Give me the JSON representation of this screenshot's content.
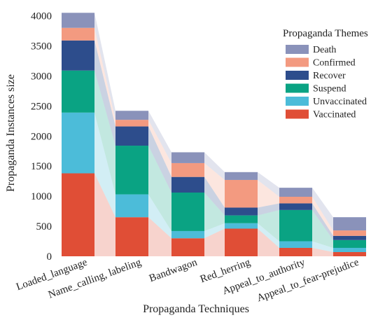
{
  "chart_data": {
    "type": "bar",
    "stacked": true,
    "connectors": true,
    "xlabel": "Propaganda Techniques",
    "ylabel": "Propaganda Instances size",
    "categories": [
      "Loaded_language",
      "Name_calling, labeling",
      "Bandwagon",
      "Red_herring",
      "Appeal_to_authority",
      "Appeal_to_fear-prejudice"
    ],
    "ylim": [
      0,
      4100
    ],
    "yticks": [
      0,
      500,
      1000,
      1500,
      2000,
      2500,
      3000,
      3500,
      4000
    ],
    "legend": {
      "title": "Propaganda Themes",
      "position": "top-right"
    },
    "series": [
      {
        "name": "Vaccinated",
        "color": "#e04e36",
        "values": [
          1380,
          650,
          300,
          460,
          140,
          70
        ]
      },
      {
        "name": "Unvaccinated",
        "color": "#4cbcd9",
        "values": [
          1010,
          380,
          120,
          90,
          110,
          70
        ]
      },
      {
        "name": "Suspend",
        "color": "#0aa383",
        "values": [
          700,
          810,
          640,
          130,
          520,
          130
        ]
      },
      {
        "name": "Recover",
        "color": "#2d4d8c",
        "values": [
          500,
          320,
          260,
          130,
          110,
          70
        ]
      },
      {
        "name": "Confirmed",
        "color": "#f39a80",
        "values": [
          210,
          110,
          230,
          460,
          110,
          90
        ]
      },
      {
        "name": "Death",
        "color": "#8a92ba",
        "values": [
          250,
          150,
          180,
          130,
          150,
          220
        ]
      }
    ]
  }
}
